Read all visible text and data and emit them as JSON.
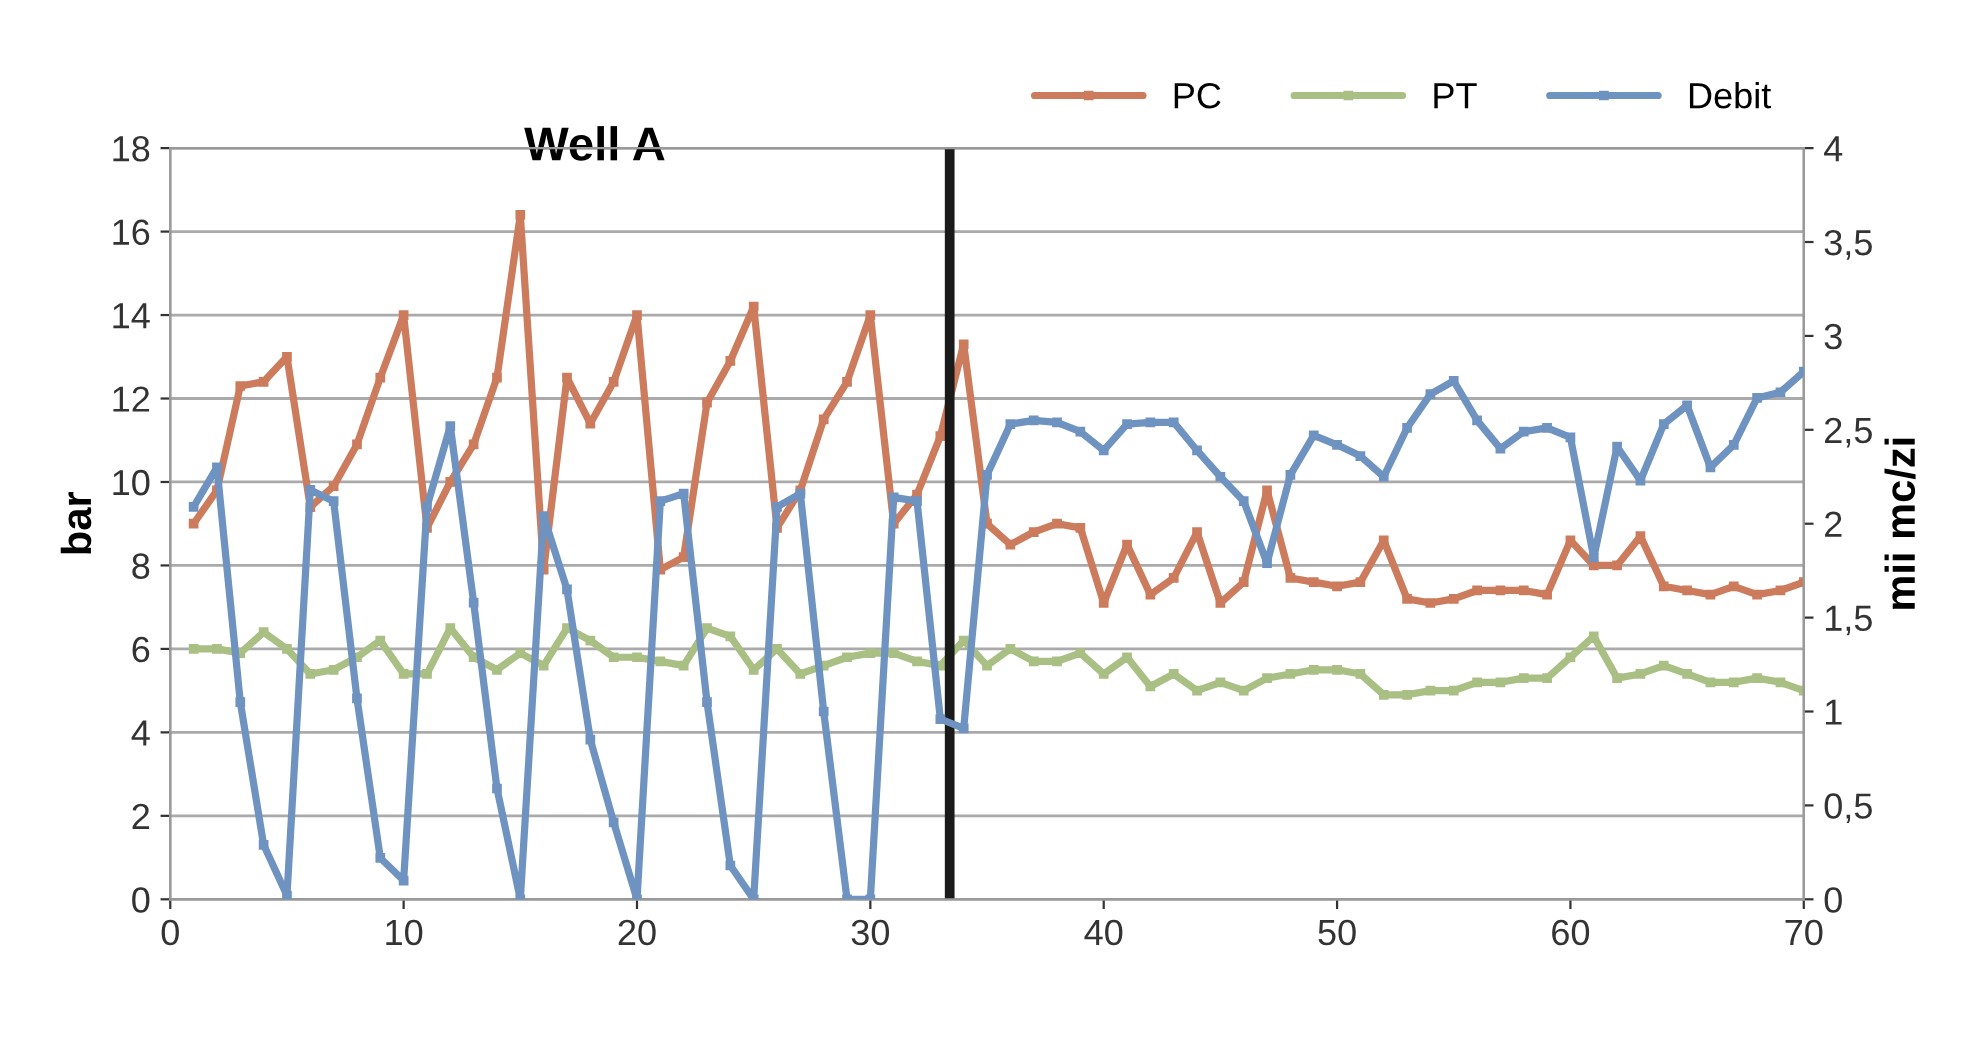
{
  "chart_data": {
    "type": "line",
    "title": "Well A",
    "ylabel": "bar",
    "y2label": "mii mc/zi",
    "x": [
      1,
      2,
      3,
      4,
      5,
      6,
      7,
      8,
      9,
      10,
      11,
      12,
      13,
      14,
      15,
      16,
      17,
      18,
      19,
      20,
      21,
      22,
      23,
      24,
      25,
      26,
      27,
      28,
      29,
      30,
      31,
      32,
      33,
      34,
      35,
      36,
      37,
      38,
      39,
      40,
      41,
      42,
      43,
      44,
      45,
      46,
      47,
      48,
      49,
      50,
      51,
      52,
      53,
      54,
      55,
      56,
      57,
      58,
      59,
      60,
      61,
      62,
      63,
      64,
      65,
      66,
      67,
      68,
      69,
      70
    ],
    "series": [
      {
        "name": "PC",
        "color": "#cc7b5c",
        "values": [
          9.0,
          9.8,
          12.3,
          12.4,
          13.0,
          9.4,
          9.9,
          10.9,
          12.5,
          14.0,
          8.9,
          10.0,
          10.9,
          12.5,
          16.4,
          7.9,
          12.5,
          11.4,
          12.4,
          14.0,
          7.9,
          8.2,
          11.9,
          12.9,
          14.2,
          8.9,
          9.8,
          11.5,
          12.4,
          14.0,
          9.0,
          9.7,
          11.1,
          13.3,
          9.0,
          8.5,
          8.8,
          9.0,
          8.9,
          7.1,
          8.5,
          7.3,
          7.7,
          8.8,
          7.1,
          7.6,
          9.8,
          7.7,
          7.6,
          7.5,
          7.6,
          8.6,
          7.2,
          7.1,
          7.2,
          7.4,
          7.4,
          7.4,
          7.3,
          8.6,
          8.0,
          8.0,
          8.7,
          7.5,
          7.4,
          7.3,
          7.5,
          7.3,
          7.4,
          7.6
        ]
      },
      {
        "name": "PT",
        "color": "#a9bf84",
        "values": [
          6.0,
          6.0,
          5.9,
          6.4,
          6.0,
          5.4,
          5.5,
          5.8,
          6.2,
          5.4,
          5.4,
          6.5,
          5.8,
          5.5,
          5.9,
          5.6,
          6.5,
          6.2,
          5.8,
          5.8,
          5.7,
          5.6,
          6.5,
          6.3,
          5.5,
          6.0,
          5.4,
          5.6,
          5.8,
          5.9,
          5.9,
          5.7,
          5.6,
          6.2,
          5.6,
          6.0,
          5.7,
          5.7,
          5.9,
          5.4,
          5.8,
          5.1,
          5.4,
          5.0,
          5.2,
          5.0,
          5.3,
          5.4,
          5.5,
          5.5,
          5.4,
          4.9,
          4.9,
          5.0,
          5.0,
          5.2,
          5.2,
          5.3,
          5.3,
          5.8,
          6.3,
          5.3,
          5.4,
          5.6,
          5.4,
          5.2,
          5.2,
          5.3,
          5.2,
          5.0
        ]
      },
      {
        "name": "Debit",
        "color": "#6f93c0",
        "axis": "y2",
        "values": [
          2.09,
          2.3,
          1.05,
          0.29,
          0.02,
          2.18,
          2.12,
          1.07,
          0.22,
          0.1,
          2.09,
          2.52,
          1.58,
          0.59,
          0.0,
          2.04,
          1.65,
          0.85,
          0.41,
          0.0,
          2.12,
          2.16,
          1.05,
          0.18,
          0.0,
          2.09,
          2.16,
          1.0,
          0.0,
          0.0,
          2.14,
          2.12,
          0.96,
          0.91,
          2.26,
          2.53,
          2.55,
          2.54,
          2.49,
          2.39,
          2.53,
          2.54,
          2.54,
          2.39,
          2.25,
          2.12,
          1.79,
          2.26,
          2.47,
          2.42,
          2.36,
          2.25,
          2.51,
          2.69,
          2.76,
          2.55,
          2.4,
          2.49,
          2.51,
          2.46,
          1.82,
          2.41,
          2.23,
          2.53,
          2.63,
          2.3,
          2.42,
          2.67,
          2.7,
          2.81
        ]
      }
    ],
    "xlim": [
      0,
      70
    ],
    "xticks": [
      0,
      10,
      20,
      30,
      40,
      50,
      60,
      70
    ],
    "ylim": [
      0,
      18
    ],
    "yticks": [
      0,
      2,
      4,
      6,
      8,
      10,
      12,
      14,
      16,
      18
    ],
    "y2lim": [
      0,
      4
    ],
    "y2ticks": [
      0,
      {
        "value": 0.5,
        "label": "0,5"
      },
      1,
      {
        "value": 1.5,
        "label": "1,5"
      },
      2,
      {
        "value": 2.5,
        "label": "2,5"
      },
      3,
      {
        "value": 3.5,
        "label": "3,5"
      },
      4
    ],
    "ref_lines": [
      {
        "axis": "x",
        "value": 33.4,
        "color": "#1a1a1a"
      }
    ],
    "grid": "y",
    "legend": "top right",
    "marker": "square",
    "line_style": "solid"
  }
}
